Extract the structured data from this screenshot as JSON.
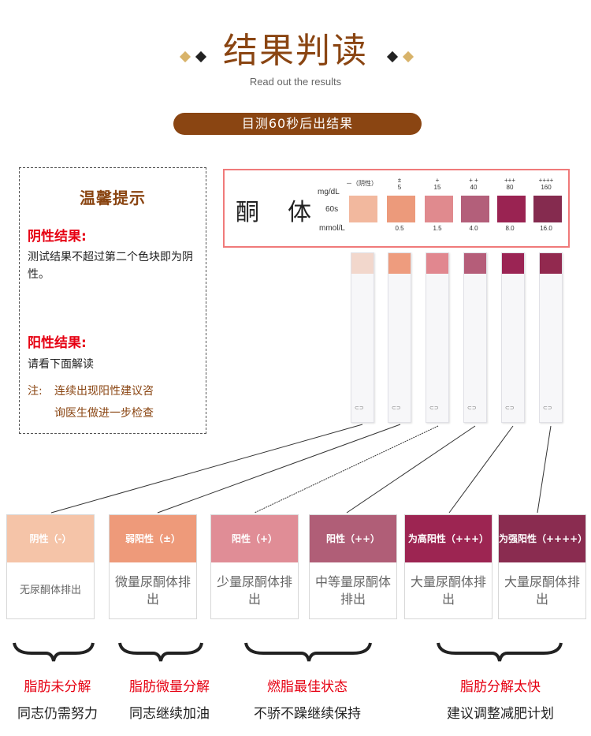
{
  "header": {
    "title": "结果判读",
    "subtitle": "Read out the results",
    "pill": "目测60秒后出结果"
  },
  "tips": {
    "title": "温馨提示",
    "negative_label": "阴性结果:",
    "negative_text": "测试结果不超过第二个色块即为阴性。",
    "positive_label": "阳性结果:",
    "positive_text": "请看下面解读",
    "note_prefix": "注:",
    "note_line1": "连续出现阳性建议咨",
    "note_line2": "询医生做进一步检查"
  },
  "chart": {
    "name": "酮体",
    "unit_mg": "mg/dL",
    "unit_time": "60s",
    "unit_mmol": "mmol/L",
    "levels": [
      {
        "sym": "－（阴性）",
        "mg": "",
        "mmol": "",
        "color": "#f2b89e"
      },
      {
        "sym": "±",
        "mg": "5",
        "mmol": "0.5",
        "color": "#ec9a7b"
      },
      {
        "sym": "+",
        "mg": "15",
        "mmol": "1.5",
        "color": "#e08a8e"
      },
      {
        "sym": "+ +",
        "mg": "40",
        "mmol": "4.0",
        "color": "#b35f7a"
      },
      {
        "sym": "+++",
        "mg": "80",
        "mmol": "8.0",
        "color": "#9a2352"
      },
      {
        "sym": "++++",
        "mg": "160",
        "mmol": "16.0",
        "color": "#852b4f"
      }
    ]
  },
  "strips": [
    {
      "color": "#f2d7cc"
    },
    {
      "color": "#ee9c7e"
    },
    {
      "color": "#e1878f"
    },
    {
      "color": "#b55d79"
    },
    {
      "color": "#9b2454"
    },
    {
      "color": "#92294f"
    }
  ],
  "cards": [
    {
      "head": "阴性（-）",
      "body": "无尿酮体排出",
      "color": "#f5c4a8"
    },
    {
      "head": "弱阳性（±）",
      "body": "微量尿酮体排出",
      "color": "#ee9a7a"
    },
    {
      "head": "阳性（+）",
      "body": "少量尿酮体排出",
      "color": "#e08d96"
    },
    {
      "head": "阳性（++）",
      "body": "中等量尿酮体排出",
      "color": "#b05e77"
    },
    {
      "head": "为高阳性（+++）",
      "body": "大量尿酮体排出",
      "color": "#9d2552"
    },
    {
      "head": "为强阳性（++++）",
      "body": "大量尿酮体排出",
      "color": "#8a2c50"
    }
  ],
  "results": [
    {
      "status": "脂肪未分解",
      "advice": "同志仍需努力"
    },
    {
      "status": "脂肪微量分解",
      "advice": "同志继续加油"
    },
    {
      "status": "燃脂最佳状态",
      "advice": "不骄不躁继续保持"
    },
    {
      "status": "脂肪分解太快",
      "advice": "建议调整减肥计划"
    }
  ],
  "colors": {
    "brown": "#8a4512",
    "red": "#e60012",
    "diamond_gold": "#d8b36a"
  }
}
